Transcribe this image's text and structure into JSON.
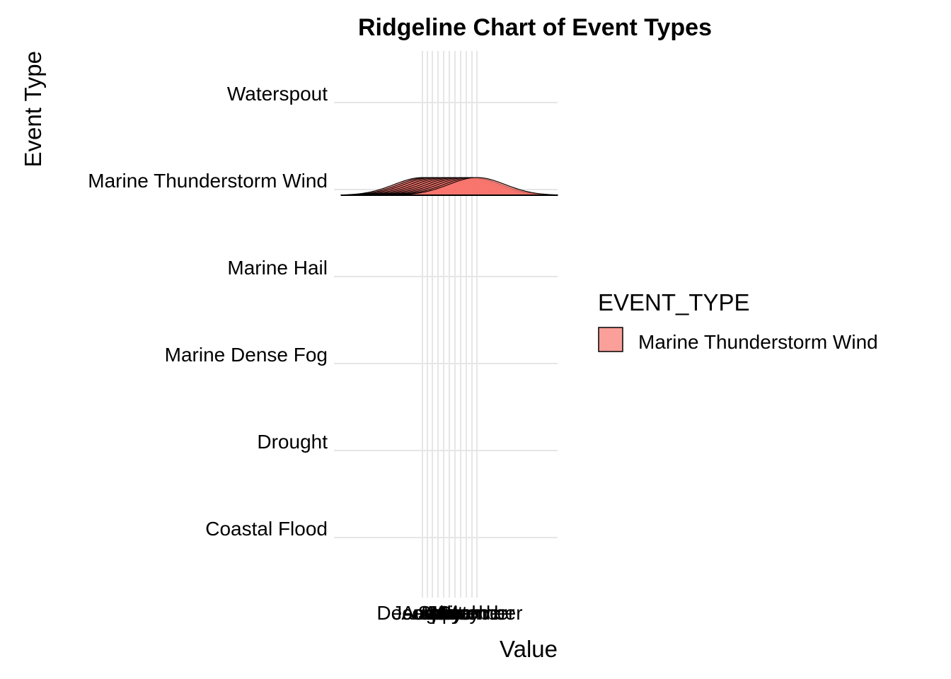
{
  "chart_data": {
    "type": "ridgeline",
    "title": "Ridgeline Chart of Event Types",
    "xlabel": "Value",
    "ylabel": "Event Type",
    "categories": [
      "Coastal Flood",
      "Drought",
      "Marine Dense Fog",
      "Marine Hail",
      "Marine Thunderstorm Wind",
      "Waterspout"
    ],
    "x_tick_labels": [
      "December",
      "January",
      "August",
      "April",
      "July",
      "June",
      "March",
      "May",
      "September",
      "October",
      "November"
    ],
    "legend": {
      "title": "EVENT_TYPE",
      "entries": [
        {
          "label": "Marine Thunderstorm Wind",
          "color": "#F8766D"
        }
      ]
    },
    "series": [
      {
        "category": "Marine Thunderstorm Wind",
        "peak_month_index": 0
      },
      {
        "category": "Marine Thunderstorm Wind",
        "peak_month_index": 1
      },
      {
        "category": "Marine Thunderstorm Wind",
        "peak_month_index": 2
      },
      {
        "category": "Marine Thunderstorm Wind",
        "peak_month_index": 3
      },
      {
        "category": "Marine Thunderstorm Wind",
        "peak_month_index": 4
      },
      {
        "category": "Marine Thunderstorm Wind",
        "peak_month_index": 5
      },
      {
        "category": "Marine Thunderstorm Wind",
        "peak_month_index": 6
      },
      {
        "category": "Marine Thunderstorm Wind",
        "peak_month_index": 7
      },
      {
        "category": "Marine Thunderstorm Wind",
        "peak_month_index": 8
      },
      {
        "category": "Marine Thunderstorm Wind",
        "peak_month_index": 9
      },
      {
        "category": "Marine Thunderstorm Wind",
        "peak_month_index": 10
      }
    ],
    "fill_color": "#F8766D",
    "grid": true,
    "legend_position": "right"
  }
}
